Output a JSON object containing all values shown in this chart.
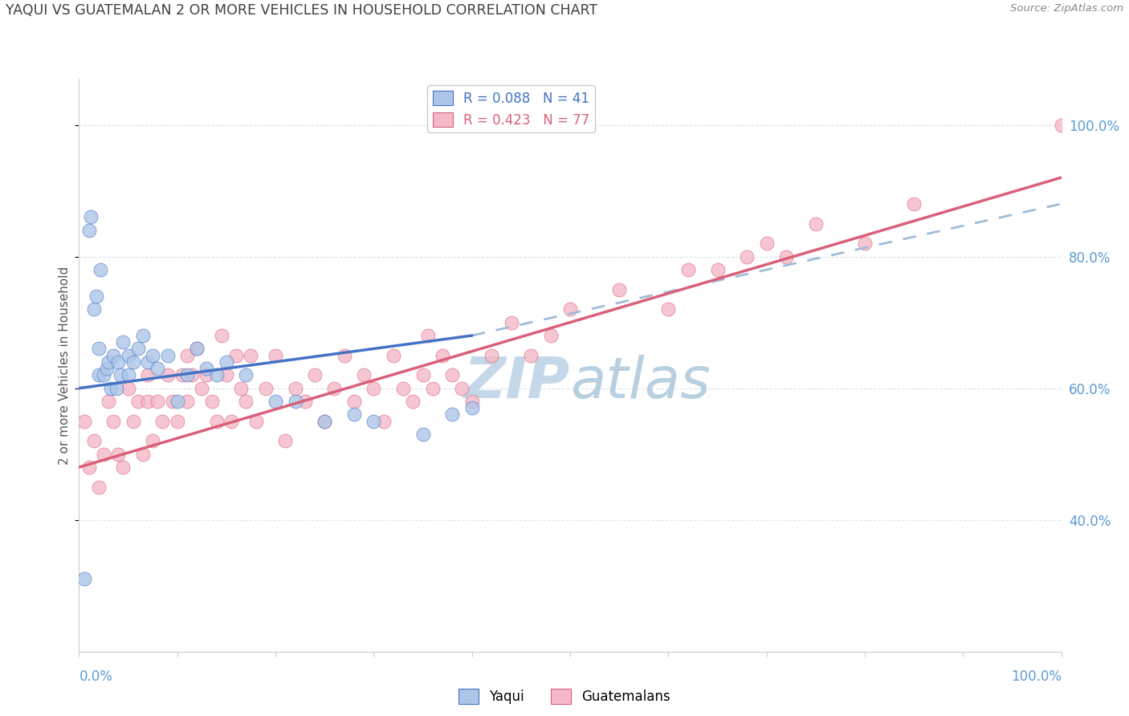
{
  "title": "YAQUI VS GUATEMALAN 2 OR MORE VEHICLES IN HOUSEHOLD CORRELATION CHART",
  "source": "Source: ZipAtlas.com",
  "ylabel": "2 or more Vehicles in Household",
  "yaqui_R": 0.088,
  "yaqui_N": 41,
  "guatemalan_R": 0.423,
  "guatemalan_N": 77,
  "yaqui_color": "#adc6e8",
  "guatemalan_color": "#f5b8c8",
  "yaqui_line_color": "#4472c4",
  "guatemalan_line_color": "#d9607a",
  "dashed_line_color": "#a0bcd8",
  "watermark_color_zip": "#c5d8ea",
  "watermark_color_atlas": "#b8cfe0",
  "title_color": "#404040",
  "axis_label_color": "#5b9bd5",
  "grid_color": "#d8e4f0",
  "legend_text_blue": "#4472c4",
  "legend_text_pink": "#d9607a",
  "yaqui_x": [
    0.5,
    1.0,
    1.2,
    1.5,
    1.8,
    2.0,
    2.0,
    2.2,
    2.5,
    2.8,
    3.0,
    3.2,
    3.5,
    3.8,
    4.0,
    4.2,
    4.5,
    5.0,
    5.0,
    5.5,
    6.0,
    6.5,
    7.0,
    7.5,
    8.0,
    9.0,
    10.0,
    11.0,
    12.0,
    13.0,
    14.0,
    15.0,
    17.0,
    20.0,
    22.0,
    25.0,
    28.0,
    30.0,
    35.0,
    38.0,
    40.0
  ],
  "yaqui_y": [
    31.0,
    84.0,
    86.0,
    72.0,
    74.0,
    62.0,
    66.0,
    78.0,
    62.0,
    63.0,
    64.0,
    60.0,
    65.0,
    60.0,
    64.0,
    62.0,
    67.0,
    62.0,
    65.0,
    64.0,
    66.0,
    68.0,
    64.0,
    65.0,
    63.0,
    65.0,
    58.0,
    62.0,
    66.0,
    63.0,
    62.0,
    64.0,
    62.0,
    58.0,
    58.0,
    55.0,
    56.0,
    55.0,
    53.0,
    56.0,
    57.0
  ],
  "guatemalan_x": [
    0.5,
    1.0,
    1.5,
    2.0,
    2.5,
    3.0,
    3.5,
    4.0,
    4.5,
    5.0,
    5.5,
    6.0,
    6.5,
    7.0,
    7.0,
    7.5,
    8.0,
    8.5,
    9.0,
    9.5,
    10.0,
    10.5,
    11.0,
    11.0,
    11.5,
    12.0,
    12.5,
    13.0,
    13.5,
    14.0,
    14.5,
    15.0,
    15.5,
    16.0,
    16.5,
    17.0,
    17.5,
    18.0,
    19.0,
    20.0,
    21.0,
    22.0,
    23.0,
    24.0,
    25.0,
    26.0,
    27.0,
    28.0,
    29.0,
    30.0,
    31.0,
    32.0,
    33.0,
    34.0,
    35.0,
    35.5,
    36.0,
    37.0,
    38.0,
    39.0,
    40.0,
    42.0,
    44.0,
    46.0,
    48.0,
    50.0,
    55.0,
    60.0,
    62.0,
    65.0,
    68.0,
    70.0,
    72.0,
    75.0,
    80.0,
    85.0,
    100.0
  ],
  "guatemalan_y": [
    55.0,
    48.0,
    52.0,
    45.0,
    50.0,
    58.0,
    55.0,
    50.0,
    48.0,
    60.0,
    55.0,
    58.0,
    50.0,
    62.0,
    58.0,
    52.0,
    58.0,
    55.0,
    62.0,
    58.0,
    55.0,
    62.0,
    65.0,
    58.0,
    62.0,
    66.0,
    60.0,
    62.0,
    58.0,
    55.0,
    68.0,
    62.0,
    55.0,
    65.0,
    60.0,
    58.0,
    65.0,
    55.0,
    60.0,
    65.0,
    52.0,
    60.0,
    58.0,
    62.0,
    55.0,
    60.0,
    65.0,
    58.0,
    62.0,
    60.0,
    55.0,
    65.0,
    60.0,
    58.0,
    62.0,
    68.0,
    60.0,
    65.0,
    62.0,
    60.0,
    58.0,
    65.0,
    70.0,
    65.0,
    68.0,
    72.0,
    75.0,
    72.0,
    78.0,
    78.0,
    80.0,
    82.0,
    80.0,
    85.0,
    82.0,
    88.0,
    100.0
  ],
  "xlim": [
    0,
    100
  ],
  "ylim": [
    20,
    107
  ],
  "yticks": [
    40,
    60,
    80,
    100
  ],
  "ytick_labels": [
    "40.0%",
    "60.0%",
    "80.0%",
    "100.0%"
  ],
  "yaqui_trend_x0": 0,
  "yaqui_trend_x1": 40,
  "yaqui_trend_y0": 60.0,
  "yaqui_trend_y1": 68.0,
  "guatemalan_trend_x0": 0,
  "guatemalan_trend_x1": 100,
  "guatemalan_trend_y0": 48.0,
  "guatemalan_trend_y1": 92.0,
  "dashed_trend_x0": 40,
  "dashed_trend_x1": 100,
  "dashed_trend_y0": 68.0,
  "dashed_trend_y1": 88.0
}
